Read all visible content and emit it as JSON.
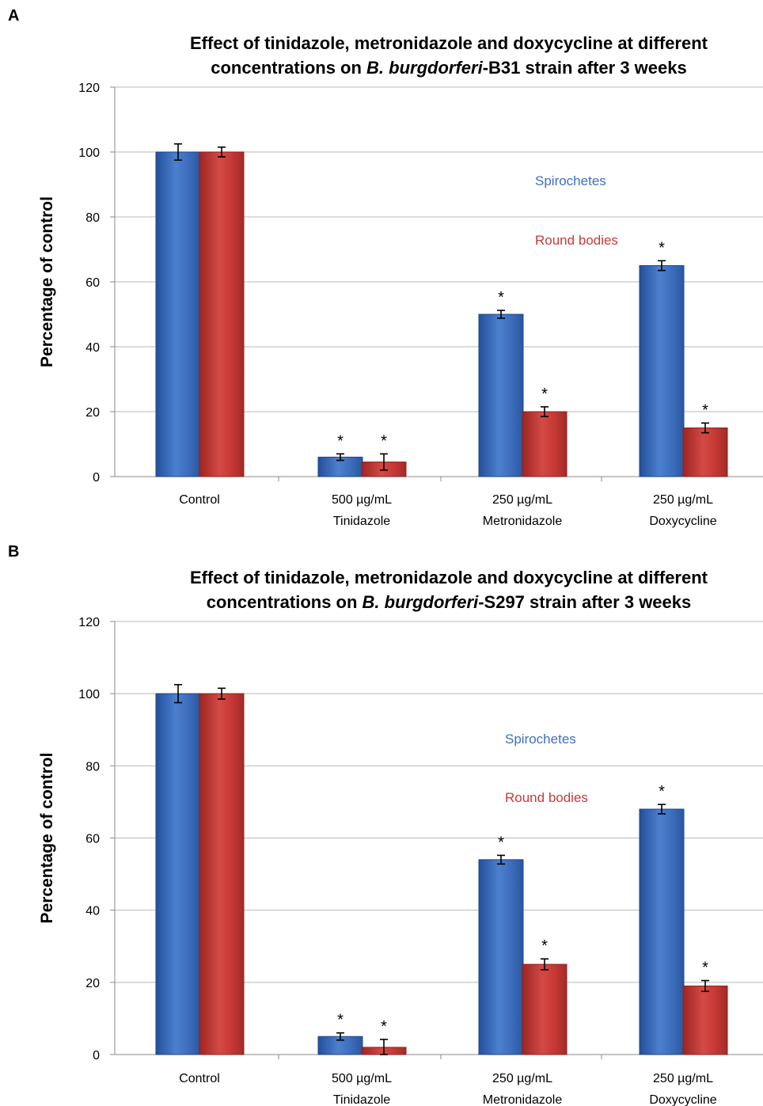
{
  "chart_data": [
    {
      "panel": "A",
      "type": "bar",
      "title": [
        "Effect of tinidazole, metronidazole and doxycycline at different",
        "concentrations on ",
        "B. burgdorferi",
        "-B31 strain after 3 weeks"
      ],
      "ylabel": "Percentage of control",
      "ylim": [
        0,
        120
      ],
      "yticks": [
        0,
        20,
        40,
        60,
        80,
        100,
        120
      ],
      "grid": true,
      "categories": [
        [
          "Control"
        ],
        [
          "500 µg/mL",
          "Tinidazole"
        ],
        [
          "250 µg/mL",
          "Metronidazole"
        ],
        [
          "250 µg/mL",
          "Doxycycline"
        ]
      ],
      "series": [
        {
          "name": "Spirochetes",
          "color": "#3f6fbf",
          "values": [
            100,
            6,
            50,
            65
          ],
          "errors": [
            2.5,
            1,
            1.2,
            1.5
          ],
          "significant": [
            false,
            true,
            true,
            true
          ]
        },
        {
          "name": "Round bodies",
          "color": "#c83a36",
          "values": [
            100,
            4.5,
            20,
            15
          ],
          "errors": [
            1.5,
            2.5,
            1.5,
            1.5
          ],
          "significant": [
            false,
            true,
            true,
            true
          ]
        }
      ],
      "star_symbol": "*",
      "legend_placement": "right"
    },
    {
      "panel": "B",
      "type": "bar",
      "title": [
        "Effect of tinidazole, metronidazole and doxycycline at different",
        "concentrations on ",
        "B. burgdorferi",
        "-S297 strain after 3 weeks"
      ],
      "ylabel": "Percentage of control",
      "ylim": [
        0,
        120
      ],
      "yticks": [
        0,
        20,
        40,
        60,
        80,
        100,
        120
      ],
      "grid": true,
      "categories": [
        [
          "Control"
        ],
        [
          "500 µg/mL",
          "Tinidazole"
        ],
        [
          "250 µg/mL",
          "Metronidazole"
        ],
        [
          "250 µg/mL",
          "Doxycycline"
        ]
      ],
      "series": [
        {
          "name": "Spirochetes",
          "color": "#3f6fbf",
          "values": [
            100,
            5,
            54,
            68
          ],
          "errors": [
            2.5,
            1,
            1.2,
            1.3
          ],
          "significant": [
            false,
            true,
            true,
            true
          ]
        },
        {
          "name": "Round bodies",
          "color": "#c83a36",
          "values": [
            100,
            2,
            25,
            19
          ],
          "errors": [
            1.5,
            2.2,
            1.5,
            1.5
          ],
          "significant": [
            false,
            true,
            true,
            true
          ]
        }
      ],
      "star_symbol": "*",
      "legend_placement": "right"
    }
  ]
}
